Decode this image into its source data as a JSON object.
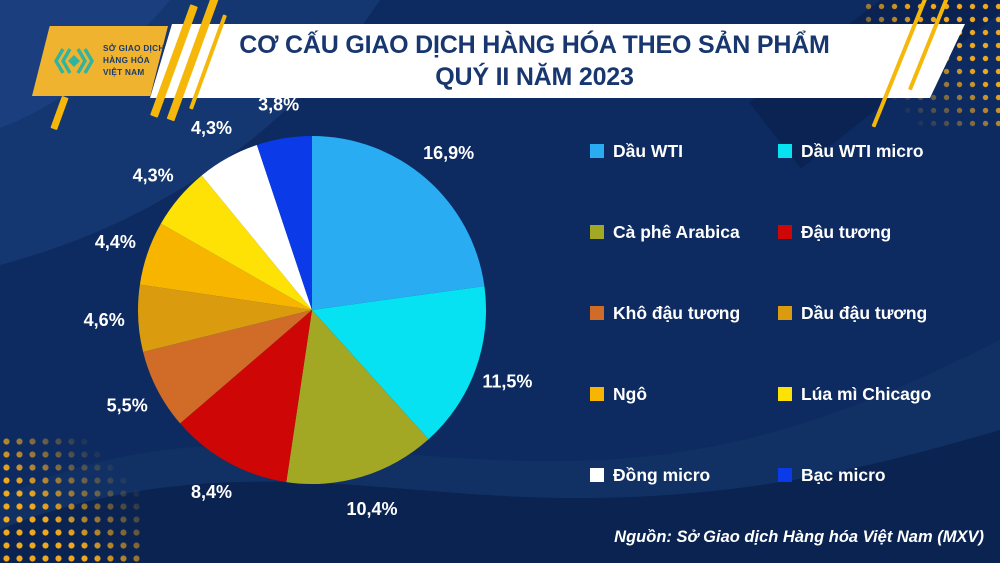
{
  "page": {
    "title_line1": "CƠ CẤU GIAO DỊCH HÀNG HÓA THEO SẢN PHẨM",
    "title_line2": "QUÝ II NĂM 2023",
    "source": "Nguồn: Sở Giao dịch Hàng hóa Việt Nam (MXV)"
  },
  "logo": {
    "org_line1": "SỞ GIAO DỊCH",
    "org_line2": "HÀNG HÓA",
    "org_line3": "VIỆT NAM",
    "mark": "mxv-chevron-mark",
    "plate_color": "#EFB32F",
    "mark_color": "#2FB3A3",
    "text_color": "#1B3A6B"
  },
  "theme": {
    "background_navy": "#0D2B60",
    "banner_white": "#FFFFFF",
    "title_navy": "#19376F",
    "accent_gold": "#F0A81E",
    "label_white": "#FFFFFF"
  },
  "chart_data": {
    "type": "pie",
    "title": "CƠ CẤU GIAO DỊCH HÀNG HÓA THEO SẢN PHẨM QUÝ II NĂM 2023",
    "unit": "%",
    "direction": "clockwise",
    "start_angle_deg": 0,
    "normalized_to_full_circle": true,
    "legend_position": "right",
    "legend_columns": 2,
    "labels_outside": true,
    "slices": [
      {
        "label": "Dầu WTI",
        "value": 16.9,
        "display": "16,9%",
        "color": "#29ACF2"
      },
      {
        "label": "Dầu WTI micro",
        "value": 11.5,
        "display": "11,5%",
        "color": "#06E2F2"
      },
      {
        "label": "Cà phê Arabica",
        "value": 10.4,
        "display": "10,4%",
        "color": "#A3A824"
      },
      {
        "label": "Đậu tương",
        "value": 8.4,
        "display": "8,4%",
        "color": "#CF0606"
      },
      {
        "label": "Khô đậu tương",
        "value": 5.5,
        "display": "5,5%",
        "color": "#D06C28"
      },
      {
        "label": "Dầu đậu tương",
        "value": 4.6,
        "display": "4,6%",
        "color": "#DB9B0E"
      },
      {
        "label": "Ngô",
        "value": 4.4,
        "display": "4,4%",
        "color": "#F7B500"
      },
      {
        "label": "Lúa mì Chicago",
        "value": 4.3,
        "display": "4,3%",
        "color": "#FFE205"
      },
      {
        "label": "Đồng micro",
        "value": 4.3,
        "display": "4,3%",
        "color": "#FFFFFF"
      },
      {
        "label": "Bạc micro",
        "value": 3.8,
        "display": "3,8%",
        "color": "#0B3BE8"
      }
    ]
  }
}
